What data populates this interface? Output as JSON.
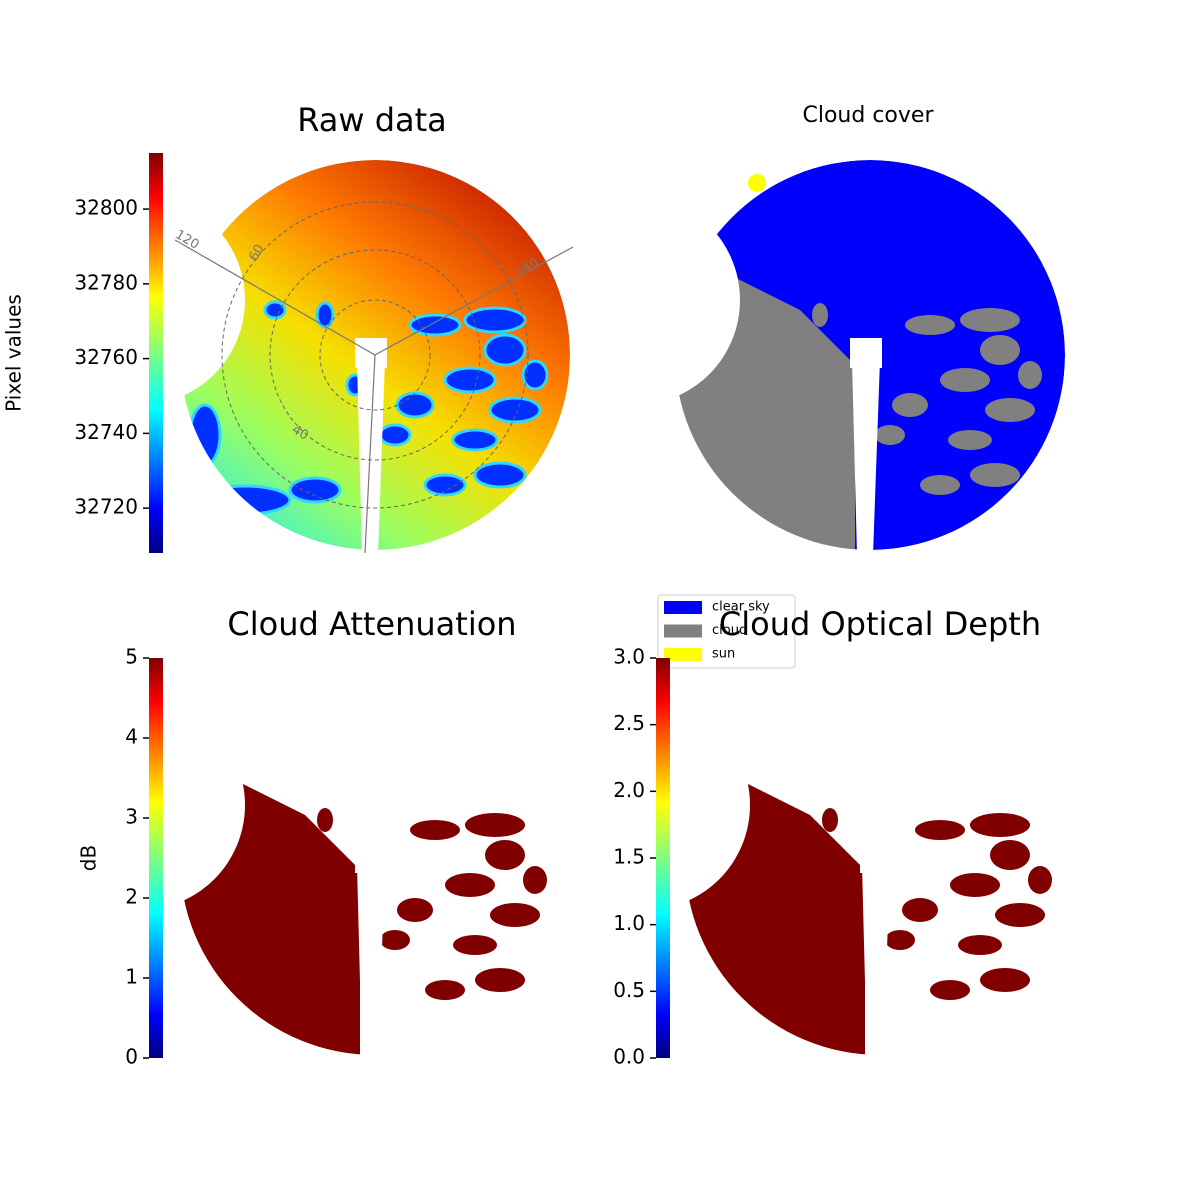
{
  "chart_data": [
    {
      "type": "image",
      "title": "Raw data",
      "colorbar": {
        "label": "Pixel values",
        "colormap": "jet",
        "ylim": [
          32708,
          32815
        ],
        "yticks": [
          32720,
          32740,
          32760,
          32780,
          32800
        ]
      },
      "annotations": [
        "120",
        "60",
        "240",
        "40"
      ]
    },
    {
      "type": "image",
      "title": "Cloud cover",
      "legend": [
        {
          "name": "clear sky",
          "color": "#0000ff"
        },
        {
          "name": "cloud",
          "color": "#808080"
        },
        {
          "name": "sun",
          "color": "#ffff00"
        }
      ]
    },
    {
      "type": "image",
      "title": "Cloud Attenuation",
      "colorbar": {
        "label": "dB",
        "colormap": "jet",
        "ylim": [
          0,
          5
        ],
        "yticks": [
          0,
          1,
          2,
          3,
          4,
          5
        ]
      }
    },
    {
      "type": "image",
      "title": "Cloud Optical Depth",
      "colorbar": {
        "colormap": "jet",
        "ylim": [
          0,
          3
        ],
        "yticks": [
          {
            "value": 0,
            "label": "0.0"
          },
          {
            "value": 0.5,
            "label": "0.5"
          },
          {
            "value": 1,
            "label": "1.0"
          },
          {
            "value": 1.5,
            "label": "1.5"
          },
          {
            "value": 2,
            "label": "2.0"
          },
          {
            "value": 2.5,
            "label": "2.5"
          },
          {
            "value": 3,
            "label": "3.0"
          }
        ]
      }
    }
  ]
}
